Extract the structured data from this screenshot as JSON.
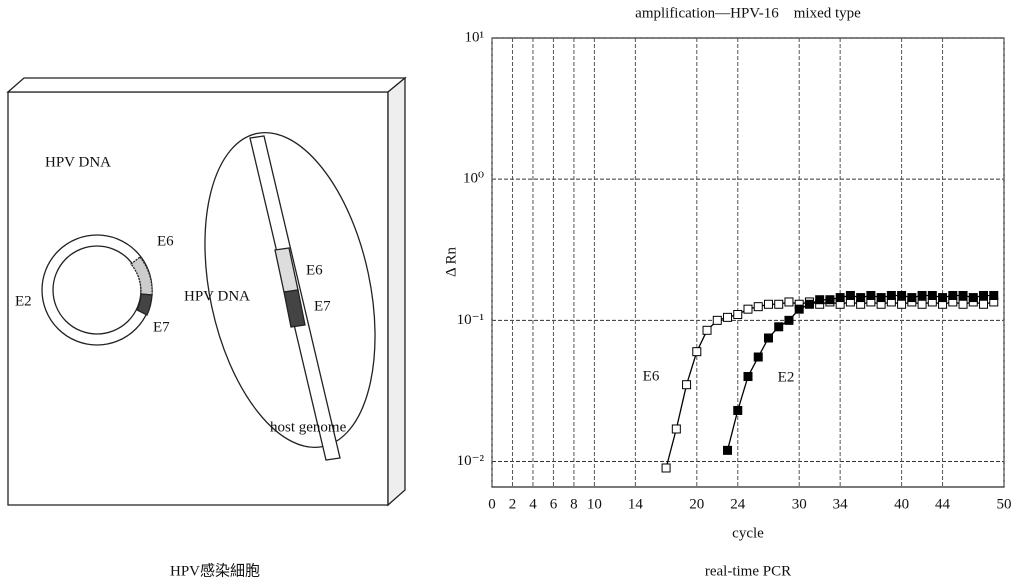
{
  "diagram": {
    "circle_label": "HPV DNA",
    "circle_genes": [
      "E6",
      "E7",
      "E2"
    ],
    "integrated_label": "HPV DNA",
    "integrated_genes": [
      "E6",
      "E7"
    ],
    "host_label": "host genome",
    "caption": "HPV感染細胞"
  },
  "chart_data": {
    "type": "line",
    "title": "amplification—HPV-16　mixed type",
    "x_label": "cycle",
    "y_label": "Δ Rn",
    "caption": "real-time PCR",
    "y_log": true,
    "grid": true,
    "xlim": [
      0,
      50
    ],
    "xticks": [
      0,
      2,
      4,
      6,
      8,
      10,
      14,
      20,
      24,
      30,
      34,
      40,
      44,
      50
    ],
    "ylim": [
      0.0066,
      10
    ],
    "yticks": [
      {
        "value": 0.01,
        "label": "10⁻²"
      },
      {
        "value": 0.1,
        "label": "10⁻¹"
      },
      {
        "value": 1,
        "label": "10⁰"
      },
      {
        "value": 10,
        "label": "10¹"
      }
    ],
    "x": [
      17,
      18,
      19,
      20,
      21,
      22,
      23,
      24,
      25,
      26,
      27,
      28,
      29,
      30,
      31,
      32,
      33,
      34,
      35,
      36,
      37,
      38,
      39,
      40,
      41,
      42,
      43,
      44,
      45,
      46,
      47,
      48,
      49
    ],
    "series": [
      {
        "name": "E6",
        "color": "#000000",
        "marker": "open-square",
        "values": [
          0.009,
          0.017,
          0.035,
          0.06,
          0.085,
          0.1,
          0.105,
          0.11,
          0.12,
          0.125,
          0.13,
          0.13,
          0.135,
          0.13,
          0.135,
          0.13,
          0.135,
          0.13,
          0.135,
          0.13,
          0.135,
          0.13,
          0.135,
          0.13,
          0.135,
          0.13,
          0.135,
          0.13,
          0.135,
          0.13,
          0.135,
          0.13,
          0.135
        ]
      },
      {
        "name": "E2",
        "color": "#000000",
        "marker": "filled-square",
        "values": [
          null,
          null,
          null,
          null,
          null,
          null,
          0.012,
          0.023,
          0.04,
          0.055,
          0.075,
          0.09,
          0.1,
          0.12,
          0.13,
          0.14,
          0.14,
          0.145,
          0.15,
          0.145,
          0.15,
          0.145,
          0.15,
          0.15,
          0.145,
          0.15,
          0.15,
          0.145,
          0.15,
          0.15,
          0.145,
          0.15,
          0.15
        ]
      }
    ]
  }
}
